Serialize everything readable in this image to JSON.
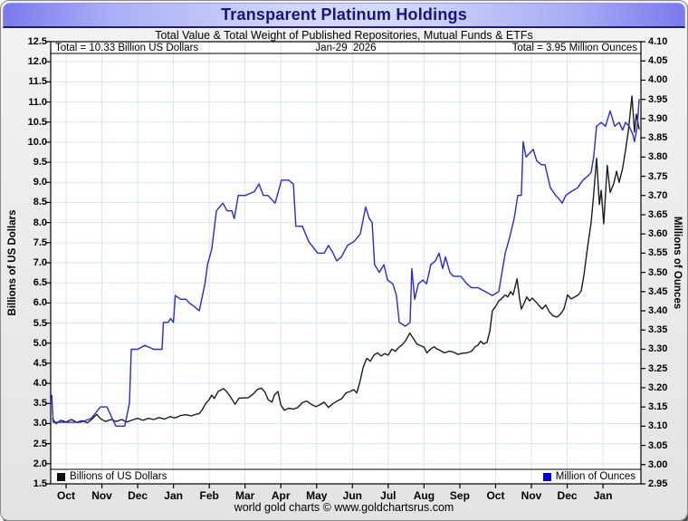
{
  "footer": "world gold charts © www.goldchartsrus.com",
  "chart_data": {
    "type": "line",
    "title": "Transparent Platinum Holdings",
    "subtitle": "Total Value & Total Weight of Published Repositories, Mutual Funds & ETFs",
    "annotations": {
      "left_total": "Total = 10.33 Billion US Dollars",
      "date": "Jan-29  2026",
      "right_total": "Total = 3.95 Million Ounces"
    },
    "left_axis": {
      "title": "Billions of US Dollars",
      "min": 1.5,
      "max": 12.5,
      "step": 0.5,
      "decimals": 1
    },
    "right_axis": {
      "title": "Millions of Ounces",
      "min": 2.95,
      "max": 4.1,
      "step": 0.05,
      "decimals": 2
    },
    "x_axis": {
      "labels": [
        "Oct",
        "Nov",
        "Dec",
        "Jan",
        "Feb",
        "Mar",
        "Apr",
        "May",
        "Jun",
        "Jul",
        "Aug",
        "Sep",
        "Oct",
        "Nov",
        "Dec",
        "Jan"
      ],
      "xlim": [
        -0.43,
        16.06
      ]
    },
    "grid": true,
    "grid_color": "#d9e5f2",
    "legend": [
      {
        "label": "Billions of US Dollars",
        "color": "#111111",
        "position": "bottom-left"
      },
      {
        "label": "Million of Ounces",
        "color": "#0000dd",
        "position": "bottom-right"
      }
    ],
    "series": [
      {
        "name": "Billions of US Dollars",
        "axis": "left",
        "color": "#1c1c1c",
        "points": [
          [
            -0.38,
            3.12
          ],
          [
            -0.28,
            3.0
          ],
          [
            -0.15,
            3.08
          ],
          [
            0.0,
            3.04
          ],
          [
            0.15,
            3.1
          ],
          [
            0.3,
            3.03
          ],
          [
            0.45,
            3.07
          ],
          [
            0.6,
            3.02
          ],
          [
            0.71,
            3.1
          ],
          [
            0.86,
            3.23
          ],
          [
            0.96,
            3.12
          ],
          [
            1.1,
            3.05
          ],
          [
            1.25,
            3.1
          ],
          [
            1.4,
            3.05
          ],
          [
            1.55,
            3.1
          ],
          [
            1.7,
            3.04
          ],
          [
            1.85,
            3.09
          ],
          [
            2.0,
            3.13
          ],
          [
            2.15,
            3.08
          ],
          [
            2.3,
            3.13
          ],
          [
            2.45,
            3.1
          ],
          [
            2.6,
            3.15
          ],
          [
            2.75,
            3.11
          ],
          [
            2.9,
            3.17
          ],
          [
            3.05,
            3.14
          ],
          [
            3.2,
            3.2
          ],
          [
            3.35,
            3.22
          ],
          [
            3.5,
            3.19
          ],
          [
            3.62,
            3.23
          ],
          [
            3.72,
            3.25
          ],
          [
            3.8,
            3.34
          ],
          [
            3.9,
            3.5
          ],
          [
            4.0,
            3.6
          ],
          [
            4.07,
            3.71
          ],
          [
            4.14,
            3.62
          ],
          [
            4.25,
            3.8
          ],
          [
            4.4,
            3.87
          ],
          [
            4.5,
            3.78
          ],
          [
            4.58,
            3.68
          ],
          [
            4.66,
            3.57
          ],
          [
            4.72,
            3.48
          ],
          [
            4.83,
            3.63
          ],
          [
            4.96,
            3.64
          ],
          [
            5.08,
            3.64
          ],
          [
            5.21,
            3.72
          ],
          [
            5.35,
            3.85
          ],
          [
            5.46,
            3.88
          ],
          [
            5.56,
            3.78
          ],
          [
            5.64,
            3.6
          ],
          [
            5.75,
            3.53
          ],
          [
            5.82,
            3.71
          ],
          [
            5.92,
            3.8
          ],
          [
            6.0,
            3.46
          ],
          [
            6.1,
            3.33
          ],
          [
            6.22,
            3.38
          ],
          [
            6.35,
            3.36
          ],
          [
            6.47,
            3.4
          ],
          [
            6.6,
            3.52
          ],
          [
            6.72,
            3.56
          ],
          [
            6.85,
            3.48
          ],
          [
            6.98,
            3.42
          ],
          [
            7.08,
            3.46
          ],
          [
            7.21,
            3.53
          ],
          [
            7.33,
            3.4
          ],
          [
            7.46,
            3.5
          ],
          [
            7.59,
            3.57
          ],
          [
            7.7,
            3.62
          ],
          [
            7.82,
            3.76
          ],
          [
            7.94,
            3.8
          ],
          [
            8.04,
            3.84
          ],
          [
            8.12,
            3.76
          ],
          [
            8.2,
            4.0
          ],
          [
            8.3,
            4.4
          ],
          [
            8.4,
            4.62
          ],
          [
            8.5,
            4.55
          ],
          [
            8.6,
            4.7
          ],
          [
            8.7,
            4.76
          ],
          [
            8.8,
            4.68
          ],
          [
            8.9,
            4.74
          ],
          [
            9.0,
            4.7
          ],
          [
            9.1,
            4.85
          ],
          [
            9.2,
            4.8
          ],
          [
            9.3,
            4.9
          ],
          [
            9.4,
            4.97
          ],
          [
            9.5,
            5.08
          ],
          [
            9.6,
            5.25
          ],
          [
            9.7,
            5.12
          ],
          [
            9.8,
            4.98
          ],
          [
            9.9,
            4.94
          ],
          [
            10.0,
            4.9
          ],
          [
            10.08,
            4.76
          ],
          [
            10.18,
            4.85
          ],
          [
            10.28,
            4.91
          ],
          [
            10.35,
            4.86
          ],
          [
            10.45,
            4.82
          ],
          [
            10.57,
            4.76
          ],
          [
            10.7,
            4.8
          ],
          [
            10.82,
            4.78
          ],
          [
            10.95,
            4.72
          ],
          [
            11.08,
            4.75
          ],
          [
            11.2,
            4.76
          ],
          [
            11.33,
            4.8
          ],
          [
            11.43,
            4.91
          ],
          [
            11.51,
            4.95
          ],
          [
            11.58,
            5.05
          ],
          [
            11.66,
            4.98
          ],
          [
            11.76,
            5.02
          ],
          [
            11.84,
            5.3
          ],
          [
            11.91,
            5.8
          ],
          [
            11.99,
            5.9
          ],
          [
            12.09,
            6.05
          ],
          [
            12.16,
            6.1
          ],
          [
            12.27,
            6.2
          ],
          [
            12.34,
            6.15
          ],
          [
            12.42,
            6.28
          ],
          [
            12.49,
            6.2
          ],
          [
            12.6,
            6.6
          ],
          [
            12.67,
            6.1
          ],
          [
            12.72,
            5.85
          ],
          [
            12.8,
            6.0
          ],
          [
            12.87,
            6.15
          ],
          [
            12.95,
            6.05
          ],
          [
            13.02,
            6.12
          ],
          [
            13.1,
            6.05
          ],
          [
            13.2,
            5.95
          ],
          [
            13.3,
            5.85
          ],
          [
            13.4,
            5.95
          ],
          [
            13.5,
            5.78
          ],
          [
            13.61,
            5.68
          ],
          [
            13.71,
            5.65
          ],
          [
            13.81,
            5.72
          ],
          [
            13.91,
            5.85
          ],
          [
            14.01,
            6.2
          ],
          [
            14.11,
            6.1
          ],
          [
            14.21,
            6.15
          ],
          [
            14.31,
            6.2
          ],
          [
            14.39,
            6.3
          ],
          [
            14.47,
            6.7
          ],
          [
            14.57,
            7.4
          ],
          [
            14.67,
            8.0
          ],
          [
            14.74,
            8.7
          ],
          [
            14.82,
            9.6
          ],
          [
            14.9,
            8.45
          ],
          [
            14.95,
            8.8
          ],
          [
            15.02,
            7.97
          ],
          [
            15.12,
            9.42
          ],
          [
            15.2,
            8.75
          ],
          [
            15.3,
            8.97
          ],
          [
            15.38,
            9.28
          ],
          [
            15.45,
            9.0
          ],
          [
            15.55,
            9.35
          ],
          [
            15.63,
            9.8
          ],
          [
            15.71,
            10.3
          ],
          [
            15.81,
            11.15
          ],
          [
            15.88,
            10.25
          ],
          [
            15.93,
            10.7
          ],
          [
            16.01,
            10.33
          ]
        ]
      },
      {
        "name": "Million of Ounces",
        "axis": "right",
        "color": "#2a2ad0",
        "points": [
          [
            -0.4,
            3.18
          ],
          [
            -0.36,
            3.11
          ],
          [
            0.0,
            3.11
          ],
          [
            0.4,
            3.11
          ],
          [
            0.7,
            3.12
          ],
          [
            0.96,
            3.15
          ],
          [
            1.14,
            3.15
          ],
          [
            1.39,
            3.1
          ],
          [
            1.64,
            3.1
          ],
          [
            1.77,
            3.16
          ],
          [
            1.82,
            3.3
          ],
          [
            2.0,
            3.3
          ],
          [
            2.2,
            3.31
          ],
          [
            2.45,
            3.3
          ],
          [
            2.68,
            3.3
          ],
          [
            2.72,
            3.37
          ],
          [
            2.85,
            3.37
          ],
          [
            2.92,
            3.38
          ],
          [
            3.0,
            3.37
          ],
          [
            3.05,
            3.44
          ],
          [
            3.2,
            3.43
          ],
          [
            3.35,
            3.43
          ],
          [
            3.45,
            3.42
          ],
          [
            3.6,
            3.41
          ],
          [
            3.72,
            3.4
          ],
          [
            3.88,
            3.47
          ],
          [
            3.95,
            3.52
          ],
          [
            4.07,
            3.56
          ],
          [
            4.2,
            3.66
          ],
          [
            4.38,
            3.68
          ],
          [
            4.5,
            3.66
          ],
          [
            4.63,
            3.66
          ],
          [
            4.7,
            3.64
          ],
          [
            4.81,
            3.7
          ],
          [
            5.01,
            3.7
          ],
          [
            5.26,
            3.71
          ],
          [
            5.39,
            3.73
          ],
          [
            5.51,
            3.7
          ],
          [
            5.64,
            3.7
          ],
          [
            5.84,
            3.68
          ],
          [
            6.02,
            3.74
          ],
          [
            6.22,
            3.74
          ],
          [
            6.35,
            3.73
          ],
          [
            6.42,
            3.62
          ],
          [
            6.6,
            3.62
          ],
          [
            6.78,
            3.58
          ],
          [
            7.03,
            3.55
          ],
          [
            7.21,
            3.55
          ],
          [
            7.33,
            3.57
          ],
          [
            7.46,
            3.55
          ],
          [
            7.56,
            3.53
          ],
          [
            7.69,
            3.54
          ],
          [
            7.86,
            3.57
          ],
          [
            8.04,
            3.58
          ],
          [
            8.22,
            3.6
          ],
          [
            8.37,
            3.67
          ],
          [
            8.47,
            3.64
          ],
          [
            8.55,
            3.63
          ],
          [
            8.62,
            3.52
          ],
          [
            8.75,
            3.5
          ],
          [
            8.88,
            3.52
          ],
          [
            8.98,
            3.48
          ],
          [
            9.13,
            3.47
          ],
          [
            9.23,
            3.44
          ],
          [
            9.31,
            3.37
          ],
          [
            9.48,
            3.36
          ],
          [
            9.61,
            3.37
          ],
          [
            9.66,
            3.51
          ],
          [
            9.74,
            3.43
          ],
          [
            9.84,
            3.47
          ],
          [
            9.97,
            3.48
          ],
          [
            10.07,
            3.47
          ],
          [
            10.19,
            3.52
          ],
          [
            10.32,
            3.53
          ],
          [
            10.42,
            3.55
          ],
          [
            10.52,
            3.51
          ],
          [
            10.6,
            3.54
          ],
          [
            10.72,
            3.5
          ],
          [
            10.82,
            3.49
          ],
          [
            11.03,
            3.49
          ],
          [
            11.2,
            3.47
          ],
          [
            11.33,
            3.46
          ],
          [
            11.51,
            3.46
          ],
          [
            11.71,
            3.45
          ],
          [
            11.91,
            3.44
          ],
          [
            12.09,
            3.45
          ],
          [
            12.27,
            3.55
          ],
          [
            12.39,
            3.59
          ],
          [
            12.52,
            3.64
          ],
          [
            12.62,
            3.7
          ],
          [
            12.72,
            3.7
          ],
          [
            12.77,
            3.84
          ],
          [
            12.85,
            3.8
          ],
          [
            12.95,
            3.81
          ],
          [
            13.05,
            3.82
          ],
          [
            13.15,
            3.79
          ],
          [
            13.28,
            3.78
          ],
          [
            13.38,
            3.78
          ],
          [
            13.53,
            3.72
          ],
          [
            13.68,
            3.7
          ],
          [
            13.78,
            3.69
          ],
          [
            13.86,
            3.68
          ],
          [
            13.96,
            3.7
          ],
          [
            14.11,
            3.71
          ],
          [
            14.29,
            3.72
          ],
          [
            14.44,
            3.74
          ],
          [
            14.57,
            3.75
          ],
          [
            14.67,
            3.76
          ],
          [
            14.74,
            3.8
          ],
          [
            14.82,
            3.88
          ],
          [
            14.95,
            3.89
          ],
          [
            15.07,
            3.88
          ],
          [
            15.2,
            3.92
          ],
          [
            15.33,
            3.88
          ],
          [
            15.45,
            3.89
          ],
          [
            15.55,
            3.87
          ],
          [
            15.63,
            3.89
          ],
          [
            15.73,
            3.88
          ],
          [
            15.83,
            3.86
          ],
          [
            15.88,
            3.84
          ],
          [
            15.96,
            3.88
          ],
          [
            16.01,
            3.95
          ]
        ]
      }
    ]
  }
}
